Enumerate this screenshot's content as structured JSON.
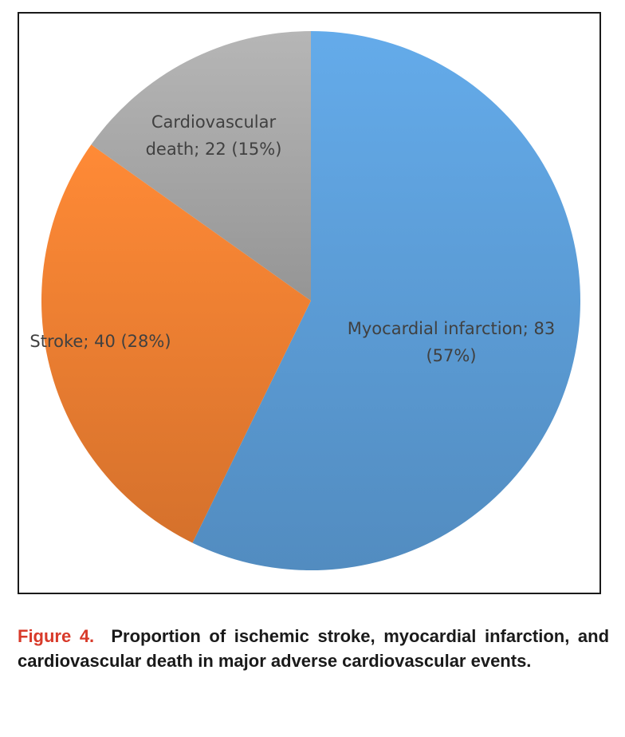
{
  "chart_data": {
    "type": "pie",
    "slices": [
      {
        "name": "Myocardial infarction",
        "value": 83,
        "percent": 57,
        "color": "#5b9bd5",
        "label_lines": [
          "Myocardial infarction; 83",
          "(57%)"
        ]
      },
      {
        "name": "Stroke",
        "value": 40,
        "percent": 28,
        "color": "#ed7d31",
        "label_lines": [
          "Stroke; 40 (28%)"
        ]
      },
      {
        "name": "Cardiovascular death",
        "value": 22,
        "percent": 15,
        "color": "#a5a5a5",
        "label_lines": [
          "Cardiovascular",
          "death; 22 (15%)"
        ]
      }
    ],
    "start": "12 o'clock",
    "direction": "clockwise",
    "legend": "none"
  },
  "caption": {
    "label": "Figure 4.",
    "text": "Proportion of ischemic stroke, myocardial infarction, and cardiovascular death in major adverse cardiovascular events."
  }
}
